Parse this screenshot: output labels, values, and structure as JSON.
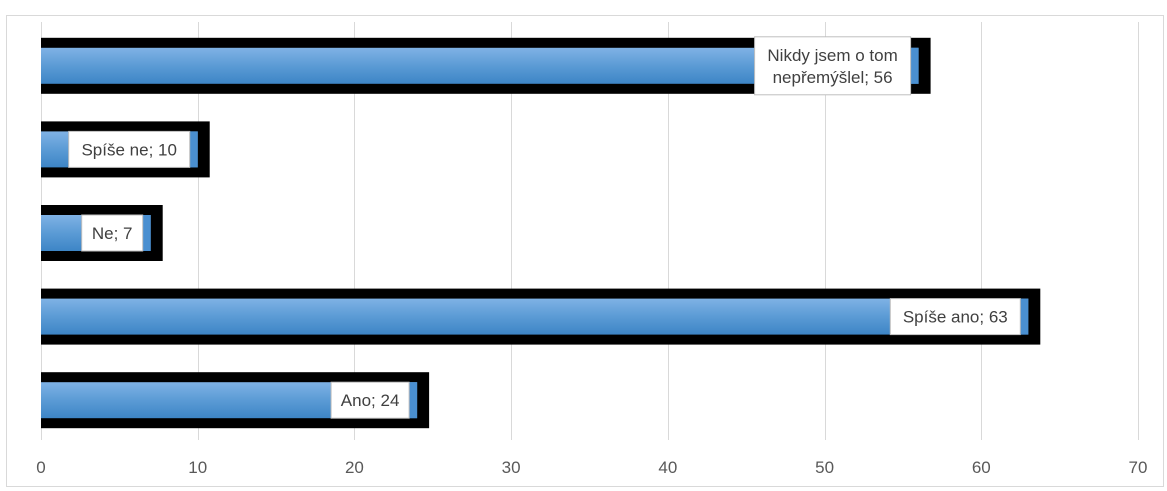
{
  "chart_data": {
    "type": "bar",
    "orientation": "horizontal",
    "categories": [
      "Nikdy jsem o tom nepřemýšlel",
      "Spíše ne",
      "Ne",
      "Spíše ano",
      "Ano"
    ],
    "values": [
      56,
      10,
      7,
      63,
      24
    ],
    "data_labels": [
      [
        "Nikdy jsem o tom",
        "nepřemýšlel; 56"
      ],
      [
        "Spíše ne; 10"
      ],
      [
        "Ne; 7"
      ],
      [
        "Spíše ano; 63"
      ],
      [
        "Ano; 24"
      ]
    ],
    "xlim": [
      0,
      70
    ],
    "xticks": [
      0,
      10,
      20,
      30,
      40,
      50,
      60,
      70
    ],
    "grid": "vertical",
    "legend": "none",
    "colors": {
      "bar": "#5b9bd5",
      "bar_highlight": "#8fbde8",
      "bar_shadow": "#000000",
      "grid": "#d9d9d9",
      "label_border": "#bfbfbf"
    }
  }
}
